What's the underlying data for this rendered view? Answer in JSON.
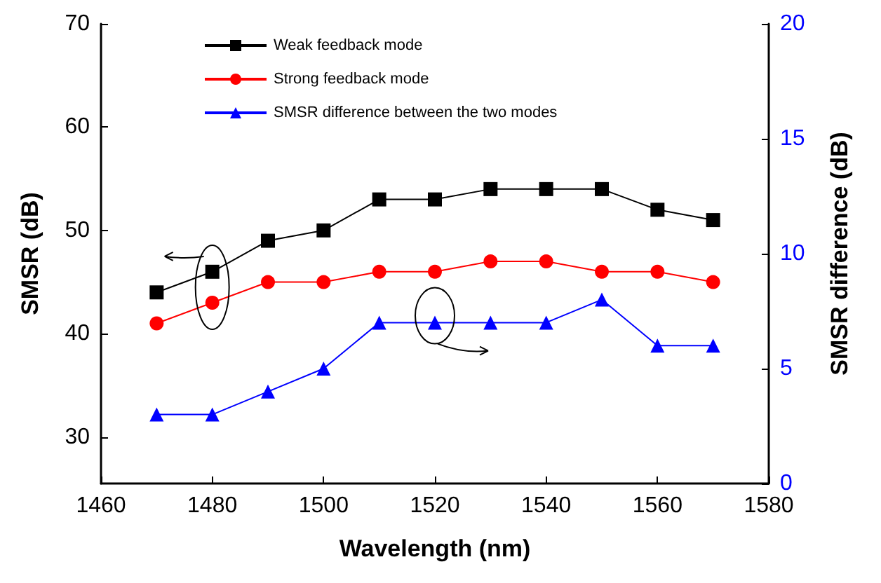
{
  "chart_data": {
    "type": "line",
    "xlabel": "Wavelength (nm)",
    "ylabel": "SMSR (dB)",
    "y2label": "SMSR difference (dB)",
    "x": [
      1470,
      1480,
      1490,
      1500,
      1510,
      1520,
      1530,
      1540,
      1550,
      1560,
      1570
    ],
    "series": [
      {
        "name": "Weak feedback mode",
        "color": "#000000",
        "marker": "square",
        "values": [
          44,
          46,
          49,
          50,
          53,
          53,
          54,
          54,
          54,
          52,
          51
        ]
      },
      {
        "name": "Strong feedback mode",
        "color": "#ff0000",
        "marker": "circle",
        "values": [
          41,
          43,
          45,
          45,
          46,
          46,
          47,
          47,
          46,
          46,
          45
        ]
      },
      {
        "name": "SMSR difference between the two modes",
        "color": "#0000ff",
        "marker": "triangle",
        "axis": "y2",
        "values": [
          3,
          3,
          4,
          5,
          7,
          7,
          7,
          7,
          8,
          6,
          6
        ]
      }
    ],
    "xlim": [
      1460,
      1580
    ],
    "xticks": [
      1460,
      1480,
      1500,
      1520,
      1540,
      1560,
      1580
    ],
    "ylim": [
      25.5,
      70
    ],
    "yticks": [
      30,
      40,
      50,
      60,
      70
    ],
    "y2lim": [
      0,
      20
    ],
    "y2ticks": [
      0,
      5,
      10,
      15,
      20
    ],
    "grid": false,
    "legend": "top left",
    "line_style": "solid"
  }
}
